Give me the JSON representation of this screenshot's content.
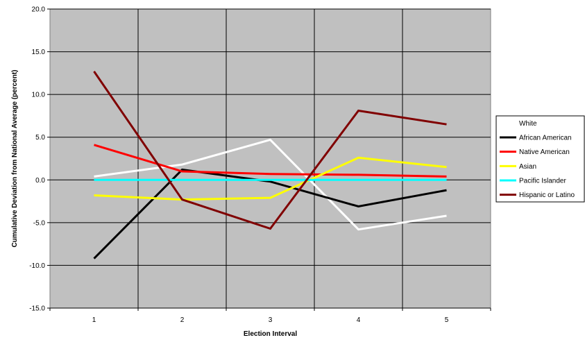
{
  "chart_data": {
    "type": "line",
    "title": "",
    "xlabel": "Election Interval",
    "ylabel": "Cumulative Deviation from National Average (percent)",
    "x": [
      1,
      2,
      3,
      4,
      5
    ],
    "ylim": [
      -15,
      20
    ],
    "yticks": [
      20,
      15,
      10,
      5,
      0,
      -5,
      -10,
      -15
    ],
    "ytick_labels": [
      "20.0",
      "15.0",
      "10.0",
      "5.0",
      "0.0",
      "-5.0",
      "-10.0",
      "-15.0"
    ],
    "xtick_labels": [
      "1",
      "2",
      "3",
      "4",
      "5"
    ],
    "grid": true,
    "plot_background": "#c0c0c0",
    "legend_position": "right",
    "series": [
      {
        "name": "White",
        "color": "#ffffff",
        "values": [
          0.4,
          1.8,
          4.7,
          -5.8,
          -4.2
        ]
      },
      {
        "name": "African American",
        "color": "#000000",
        "values": [
          -9.2,
          1.2,
          -0.2,
          -3.1,
          -1.2
        ]
      },
      {
        "name": "Native American",
        "color": "#ff0000",
        "values": [
          4.1,
          1.0,
          0.7,
          0.6,
          0.4
        ]
      },
      {
        "name": "Asian",
        "color": "#ffff00",
        "values": [
          -1.8,
          -2.3,
          -2.1,
          2.6,
          1.5
        ]
      },
      {
        "name": "Pacific Islander",
        "color": "#00ffff",
        "values": [
          0.0,
          0.0,
          0.0,
          0.0,
          0.0
        ]
      },
      {
        "name": "Hispanic or Latino",
        "color": "#800000",
        "values": [
          12.7,
          -2.3,
          -5.7,
          8.1,
          6.5
        ]
      }
    ]
  }
}
